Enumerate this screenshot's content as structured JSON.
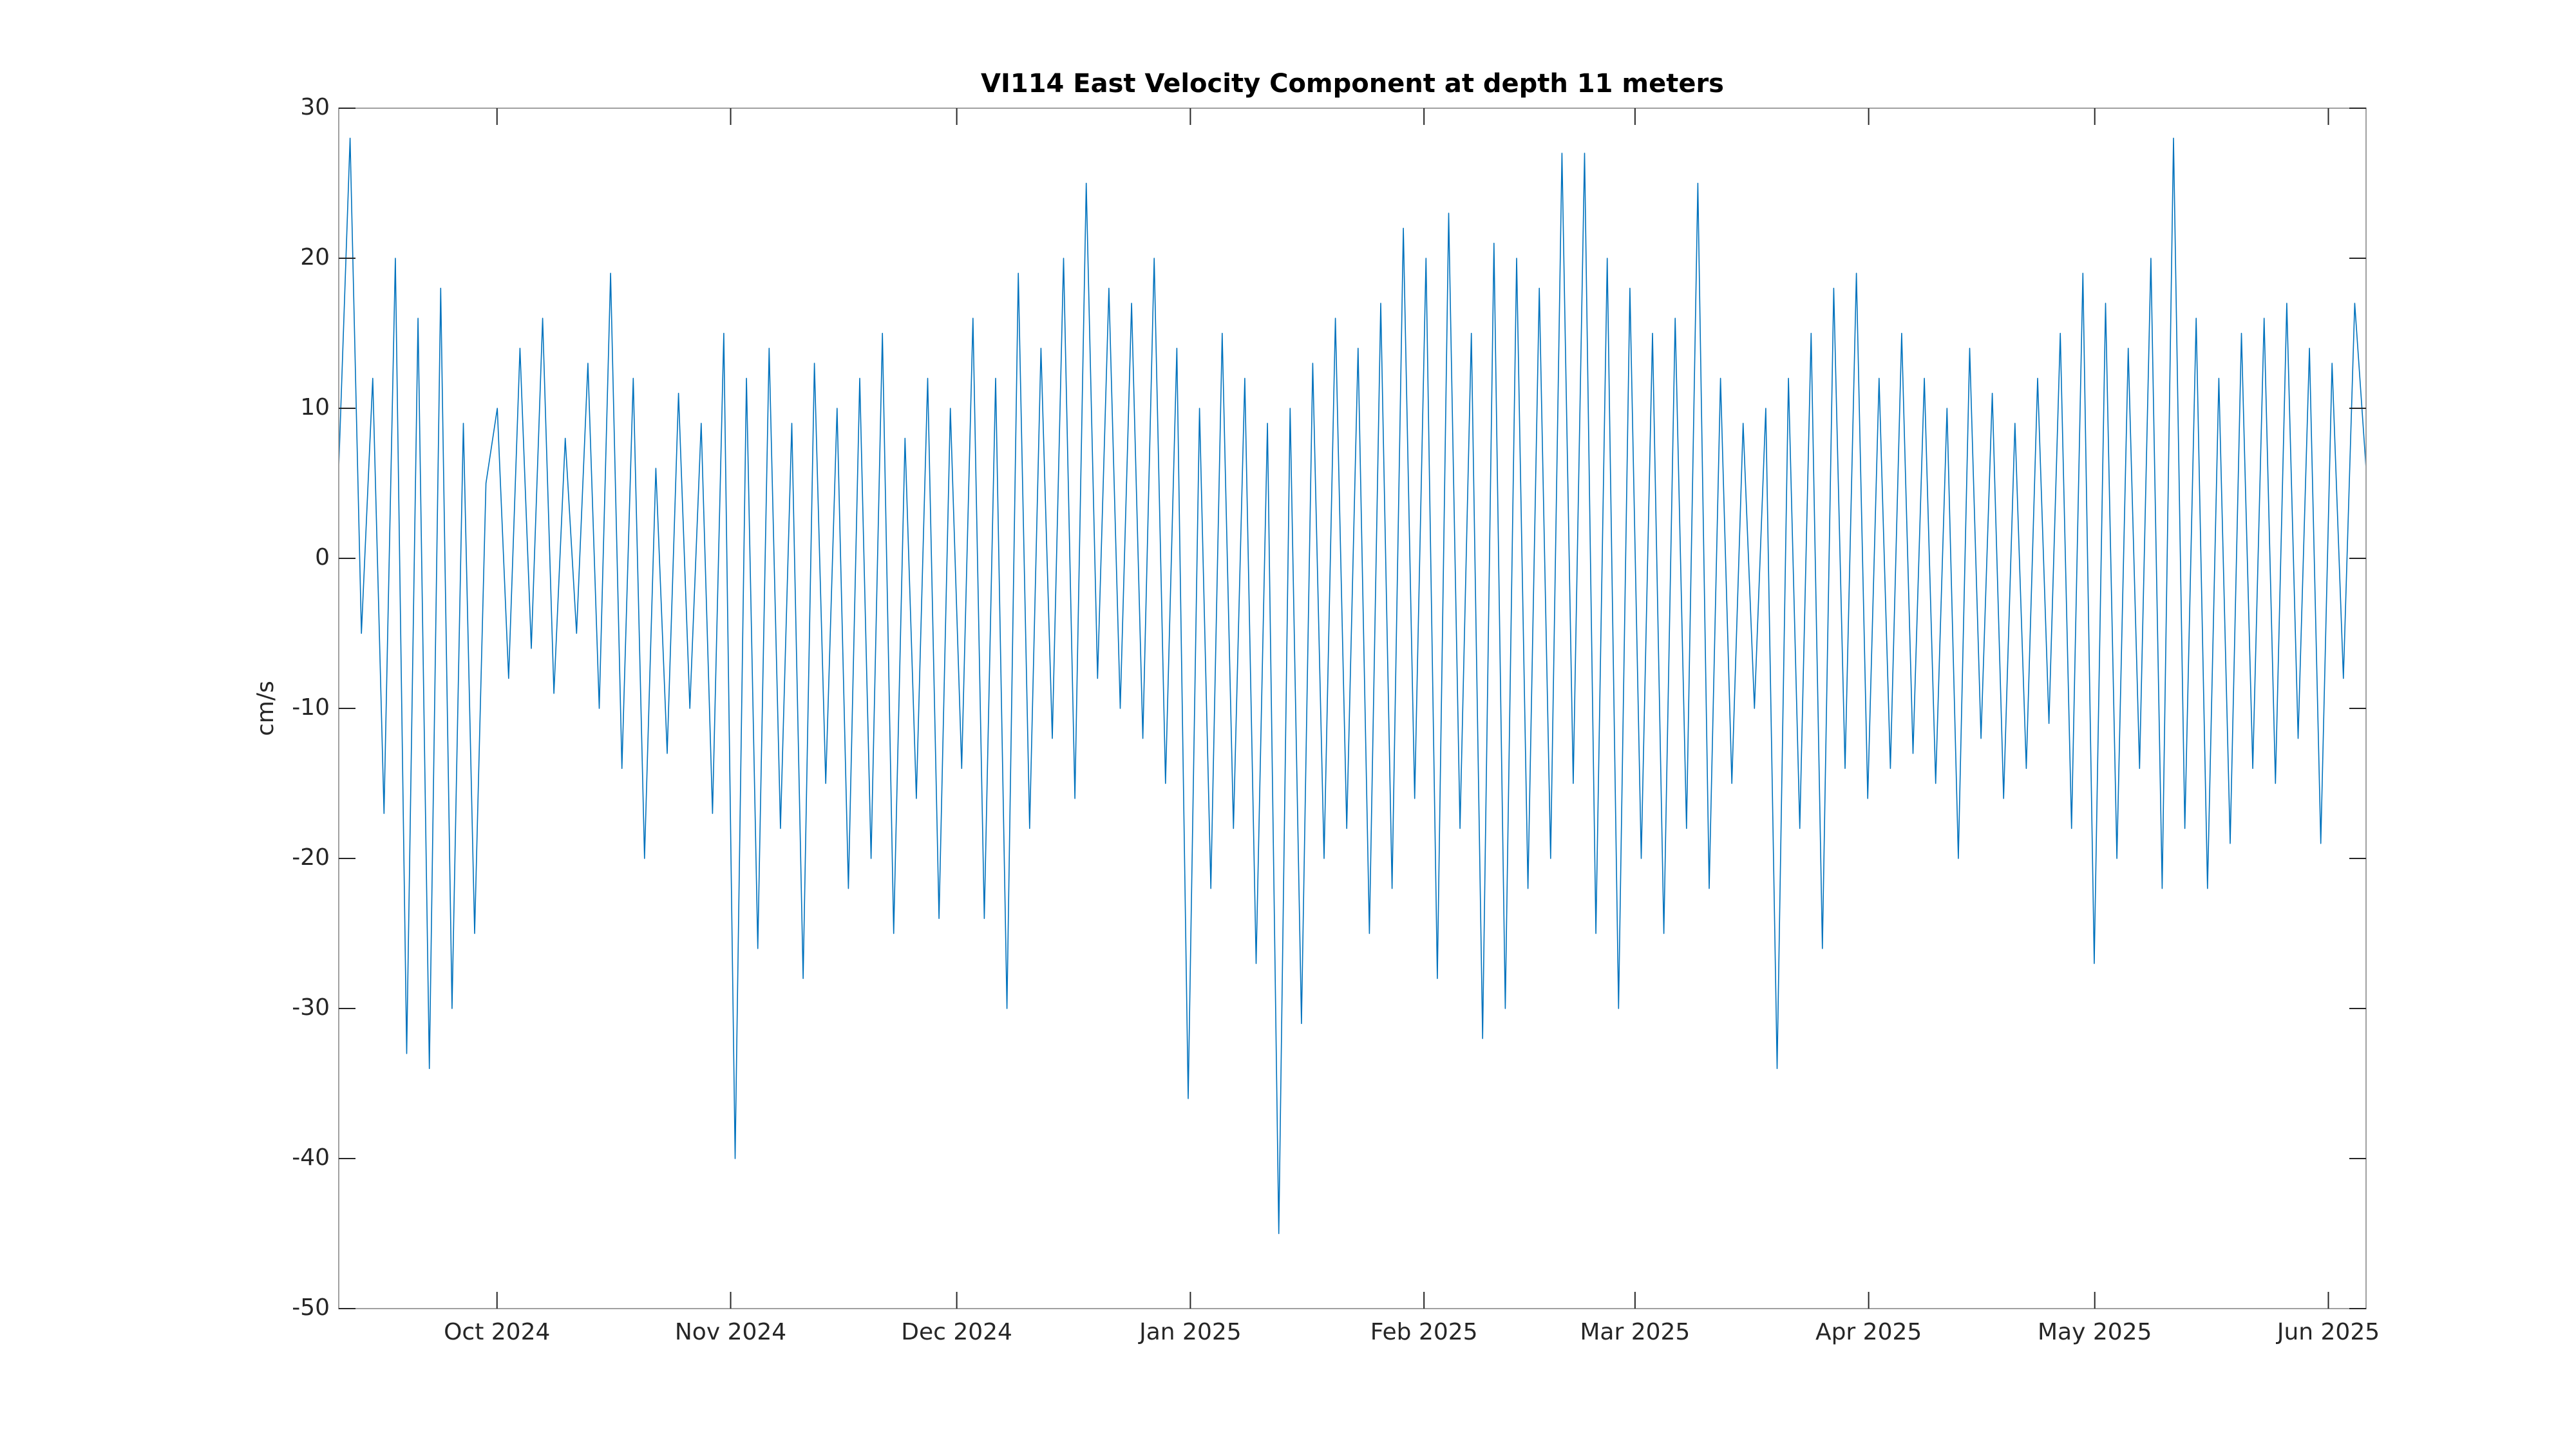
{
  "chart_data": {
    "type": "line",
    "title": "VI114 East Velocity Component at depth 11 meters",
    "ylabel": "cm/s",
    "xlim": [
      "2024-09-10",
      "2025-06-06"
    ],
    "xticks": [
      {
        "value": "2024-10",
        "label": "Oct 2024"
      },
      {
        "value": "2024-11",
        "label": "Nov 2024"
      },
      {
        "value": "2024-12",
        "label": "Dec 2024"
      },
      {
        "value": "2025-01",
        "label": "Jan 2025"
      },
      {
        "value": "2025-02",
        "label": "Feb 2025"
      },
      {
        "value": "2025-03",
        "label": "Mar 2025"
      },
      {
        "value": "2025-04",
        "label": "Apr 2025"
      },
      {
        "value": "2025-05",
        "label": "May 2025"
      },
      {
        "value": "2025-06",
        "label": "Jun 2025"
      }
    ],
    "ylim": [
      -50,
      30
    ],
    "yticks": [
      -50,
      -40,
      -30,
      -20,
      -10,
      0,
      10,
      20,
      30
    ],
    "color": "#0072bd",
    "grid": false,
    "values": [
      6,
      28,
      -5,
      12,
      -17,
      20,
      -33,
      16,
      -34,
      18,
      -30,
      9,
      -25,
      5,
      10,
      -8,
      14,
      -6,
      16,
      -9,
      8,
      -5,
      13,
      -10,
      19,
      -14,
      12,
      -20,
      6,
      -13,
      11,
      -10,
      9,
      -17,
      15,
      -40,
      12,
      -26,
      14,
      -18,
      9,
      -28,
      13,
      -15,
      10,
      -22,
      12,
      -20,
      15,
      -25,
      8,
      -16,
      12,
      -24,
      10,
      -14,
      16,
      -24,
      12,
      -30,
      19,
      -18,
      14,
      -12,
      20,
      -16,
      25,
      -8,
      18,
      -10,
      17,
      -12,
      20,
      -15,
      14,
      -36,
      10,
      -22,
      15,
      -18,
      12,
      -27,
      9,
      -45,
      10,
      -31,
      13,
      -20,
      16,
      -18,
      14,
      -25,
      17,
      -22,
      22,
      -16,
      20,
      -28,
      23,
      -18,
      15,
      -32,
      21,
      -30,
      20,
      -22,
      18,
      -20,
      27,
      -15,
      27,
      -25,
      20,
      -30,
      18,
      -20,
      15,
      -25,
      16,
      -18,
      25,
      -22,
      12,
      -15,
      9,
      -10,
      10,
      -34,
      12,
      -18,
      15,
      -26,
      18,
      -14,
      19,
      -16,
      12,
      -14,
      15,
      -13,
      12,
      -15,
      10,
      -20,
      14,
      -12,
      11,
      -16,
      9,
      -14,
      12,
      -11,
      15,
      -18,
      19,
      -27,
      17,
      -20,
      14,
      -14,
      20,
      -22,
      28,
      -18,
      16,
      -22,
      12,
      -19,
      15,
      -14,
      16,
      -15,
      17,
      -12,
      14,
      -19,
      13,
      -8,
      17,
      6
    ]
  }
}
